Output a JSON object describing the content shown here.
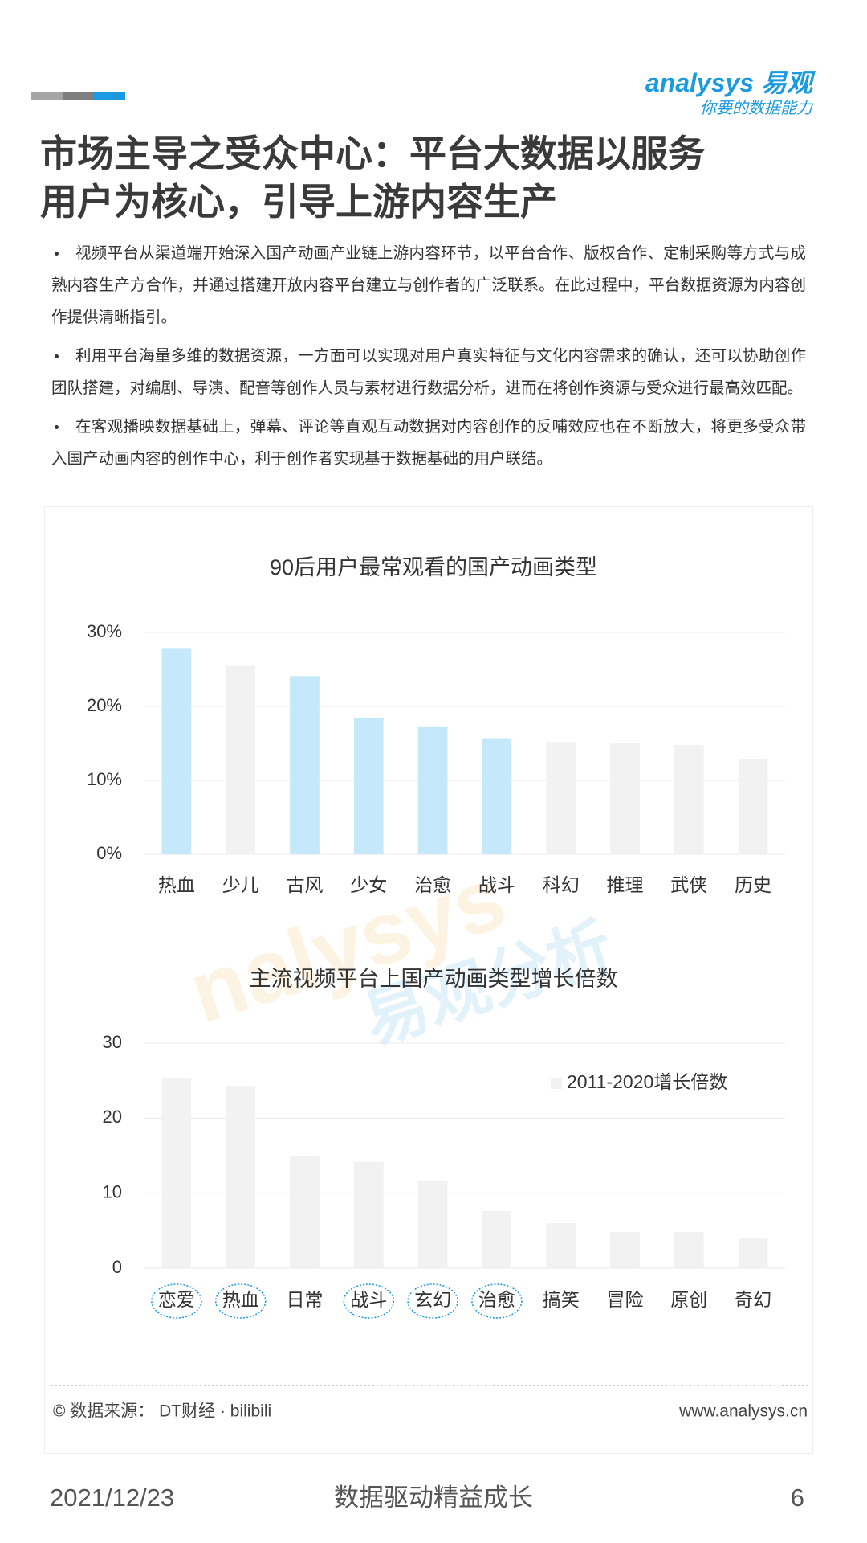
{
  "header": {
    "logo_name": "analysys",
    "logo_cn": "易观",
    "slogan": "你要的数据能力"
  },
  "title_lines": [
    "市场主导之受众中心：平台大数据以服务",
    "用户为核心，引导上游内容生产"
  ],
  "bullets": [
    "视频平台从渠道端开始深入国产动画产业链上游内容环节，以平台合作、版权合作、定制采购等方式与成熟内容生产方合作，并通过搭建开放内容平台建立与创作者的广泛联系。在此过程中，平台数据资源为内容创作提供清晰指引。",
    "利用平台海量多维的数据资源，一方面可以实现对用户真实特征与文化内容需求的确认，还可以协助创作团队搭建，对编剧、导演、配音等创作人员与素材进行数据分析，进而在将创作资源与受众进行最高效匹配。",
    "在客观播映数据基础上，弹幕、评论等直观互动数据对内容创作的反哺效应也在不断放大，将更多受众带入国产动画内容的创作中心，利于创作者实现基于数据基础的用户联结。"
  ],
  "chart_data": [
    {
      "type": "bar",
      "title": "90后用户最常观看的国产动画类型",
      "categories": [
        "热血",
        "少儿",
        "古风",
        "少女",
        "治愈",
        "战斗",
        "科幻",
        "推理",
        "武侠",
        "历史"
      ],
      "values": [
        27.9,
        25.5,
        24.1,
        18.4,
        17.2,
        15.7,
        15.2,
        15.1,
        14.8,
        12.9
      ],
      "colors": [
        "#c5e9fb",
        "#f2f2f2",
        "#c5e9fb",
        "#c5e9fb",
        "#c5e9fb",
        "#c5e9fb",
        "#f2f2f2",
        "#f2f2f2",
        "#f2f2f2",
        "#f2f2f2"
      ],
      "ylim": [
        0,
        30
      ],
      "yticks": [
        {
          "value": 0,
          "label": "0%"
        },
        {
          "value": 10,
          "label": "10%"
        },
        {
          "value": 20,
          "label": "20%"
        },
        {
          "value": 30,
          "label": "30%"
        }
      ],
      "grid": true
    },
    {
      "type": "bar",
      "title": "主流视频平台上国产动画类型增长倍数",
      "categories": [
        "恋爱",
        "热血",
        "日常",
        "战斗",
        "玄幻",
        "治愈",
        "搞笑",
        "冒险",
        "原创",
        "奇幻"
      ],
      "series": [
        {
          "name": "2011-2020增长倍数",
          "color": "#f2f2f2",
          "values": [
            25.3,
            24.3,
            15.0,
            14.2,
            11.7,
            7.6,
            6.0,
            4.8,
            4.8,
            4.0
          ]
        }
      ],
      "circled": [
        true,
        true,
        false,
        true,
        true,
        true,
        false,
        false,
        false,
        false
      ],
      "ylim": [
        0,
        30
      ],
      "yticks": [
        0,
        10,
        20,
        30
      ],
      "grid": true,
      "legend": "top-right"
    }
  ],
  "watermark": [
    "nalysys",
    "易观分析"
  ],
  "source": "© 数据来源： DT财经 · bilibili",
  "website": "www.analysys.cn",
  "footer": {
    "date": "2021/12/23",
    "slogan": "数据驱动精益成长",
    "page": 6
  }
}
